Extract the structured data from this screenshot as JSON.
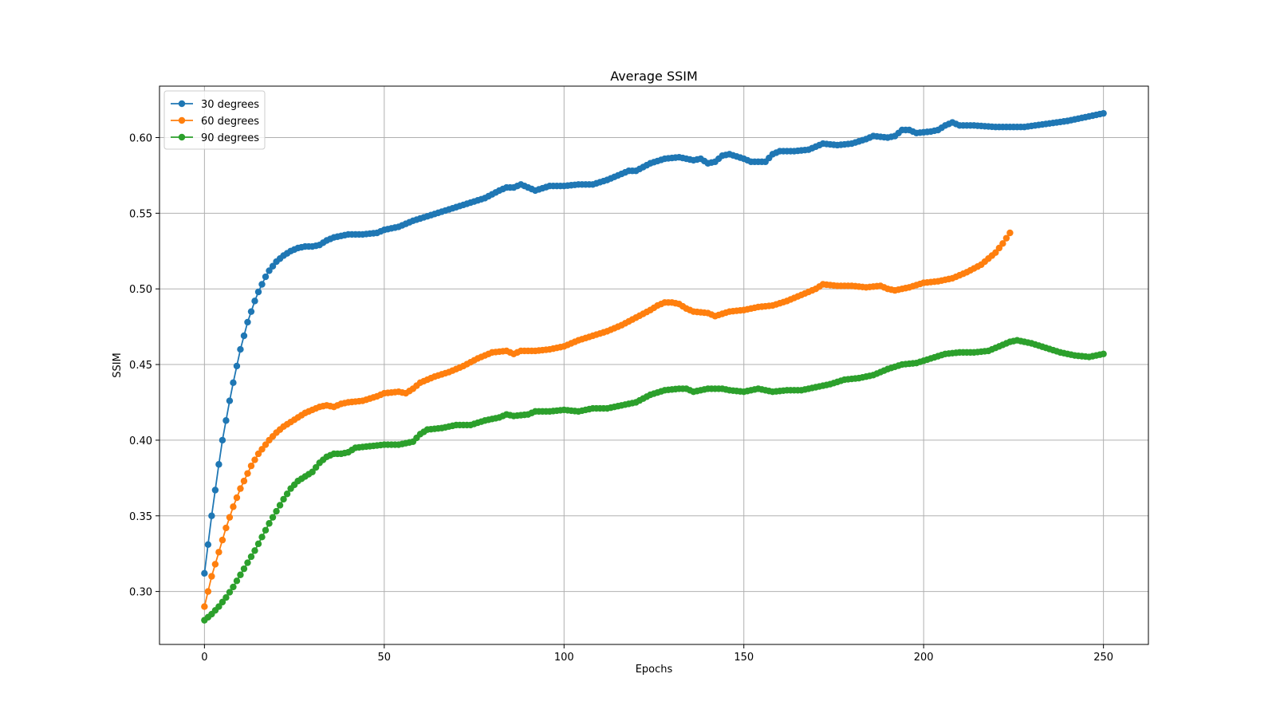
{
  "chart_data": {
    "type": "line",
    "title": "Average SSIM",
    "xlabel": "Epochs",
    "ylabel": "SSIM",
    "xlim": [
      -12.5,
      262.5
    ],
    "ylim": [
      0.265,
      0.634
    ],
    "xticks": [
      0,
      50,
      100,
      150,
      200,
      250
    ],
    "xtick_labels": [
      "0",
      "50",
      "100",
      "150",
      "200",
      "250"
    ],
    "yticks": [
      0.3,
      0.35,
      0.4,
      0.45,
      0.5,
      0.55,
      0.6
    ],
    "ytick_labels": [
      "0.30",
      "0.35",
      "0.40",
      "0.45",
      "0.50",
      "0.55",
      "0.60"
    ],
    "grid": true,
    "legend_position": "top-left",
    "colors": {
      "30 degrees": "#1f77b4",
      "60 degrees": "#ff7f0e",
      "90 degrees": "#2ca02c",
      "grid": "#b0b0b0",
      "axes": "#000000"
    },
    "series": [
      {
        "name": "30 degrees",
        "color": "#1f77b4",
        "keypoints": [
          [
            0,
            0.312
          ],
          [
            1,
            0.331
          ],
          [
            2,
            0.35
          ],
          [
            3,
            0.367
          ],
          [
            4,
            0.384
          ],
          [
            5,
            0.4
          ],
          [
            6,
            0.413
          ],
          [
            7,
            0.426
          ],
          [
            8,
            0.438
          ],
          [
            9,
            0.449
          ],
          [
            10,
            0.46
          ],
          [
            11,
            0.469
          ],
          [
            12,
            0.478
          ],
          [
            13,
            0.485
          ],
          [
            14,
            0.492
          ],
          [
            15,
            0.498
          ],
          [
            16,
            0.503
          ],
          [
            17,
            0.508
          ],
          [
            18,
            0.512
          ],
          [
            19,
            0.515
          ],
          [
            20,
            0.518
          ],
          [
            22,
            0.522
          ],
          [
            24,
            0.525
          ],
          [
            26,
            0.527
          ],
          [
            28,
            0.528
          ],
          [
            30,
            0.528
          ],
          [
            32,
            0.529
          ],
          [
            34,
            0.532
          ],
          [
            36,
            0.534
          ],
          [
            38,
            0.535
          ],
          [
            40,
            0.536
          ],
          [
            44,
            0.536
          ],
          [
            48,
            0.537
          ],
          [
            50,
            0.539
          ],
          [
            54,
            0.541
          ],
          [
            58,
            0.545
          ],
          [
            62,
            0.548
          ],
          [
            66,
            0.551
          ],
          [
            70,
            0.554
          ],
          [
            74,
            0.557
          ],
          [
            78,
            0.56
          ],
          [
            82,
            0.565
          ],
          [
            84,
            0.567
          ],
          [
            86,
            0.567
          ],
          [
            88,
            0.569
          ],
          [
            90,
            0.567
          ],
          [
            92,
            0.565
          ],
          [
            96,
            0.568
          ],
          [
            100,
            0.568
          ],
          [
            104,
            0.569
          ],
          [
            108,
            0.569
          ],
          [
            112,
            0.572
          ],
          [
            116,
            0.576
          ],
          [
            118,
            0.578
          ],
          [
            120,
            0.578
          ],
          [
            124,
            0.583
          ],
          [
            128,
            0.586
          ],
          [
            132,
            0.587
          ],
          [
            136,
            0.585
          ],
          [
            138,
            0.586
          ],
          [
            140,
            0.583
          ],
          [
            142,
            0.584
          ],
          [
            144,
            0.588
          ],
          [
            146,
            0.589
          ],
          [
            150,
            0.586
          ],
          [
            152,
            0.584
          ],
          [
            156,
            0.584
          ],
          [
            158,
            0.589
          ],
          [
            160,
            0.591
          ],
          [
            164,
            0.591
          ],
          [
            168,
            0.592
          ],
          [
            172,
            0.596
          ],
          [
            176,
            0.595
          ],
          [
            180,
            0.596
          ],
          [
            184,
            0.599
          ],
          [
            186,
            0.601
          ],
          [
            190,
            0.6
          ],
          [
            192,
            0.601
          ],
          [
            194,
            0.605
          ],
          [
            196,
            0.605
          ],
          [
            198,
            0.603
          ],
          [
            202,
            0.604
          ],
          [
            204,
            0.605
          ],
          [
            206,
            0.608
          ],
          [
            208,
            0.61
          ],
          [
            210,
            0.608
          ],
          [
            214,
            0.608
          ],
          [
            220,
            0.607
          ],
          [
            224,
            0.607
          ],
          [
            228,
            0.607
          ],
          [
            234,
            0.609
          ],
          [
            240,
            0.611
          ],
          [
            246,
            0.614
          ],
          [
            250,
            0.616
          ]
        ]
      },
      {
        "name": "60 degrees",
        "color": "#ff7f0e",
        "keypoints": [
          [
            0,
            0.29
          ],
          [
            1,
            0.3
          ],
          [
            2,
            0.31
          ],
          [
            3,
            0.318
          ],
          [
            4,
            0.326
          ],
          [
            5,
            0.334
          ],
          [
            6,
            0.342
          ],
          [
            7,
            0.349
          ],
          [
            8,
            0.356
          ],
          [
            9,
            0.362
          ],
          [
            10,
            0.368
          ],
          [
            11,
            0.373
          ],
          [
            12,
            0.378
          ],
          [
            13,
            0.383
          ],
          [
            14,
            0.387
          ],
          [
            15,
            0.391
          ],
          [
            16,
            0.394
          ],
          [
            17,
            0.397
          ],
          [
            18,
            0.4
          ],
          [
            20,
            0.405
          ],
          [
            22,
            0.409
          ],
          [
            24,
            0.412
          ],
          [
            26,
            0.415
          ],
          [
            28,
            0.418
          ],
          [
            30,
            0.42
          ],
          [
            32,
            0.422
          ],
          [
            34,
            0.423
          ],
          [
            36,
            0.422
          ],
          [
            38,
            0.424
          ],
          [
            40,
            0.425
          ],
          [
            44,
            0.426
          ],
          [
            48,
            0.429
          ],
          [
            50,
            0.431
          ],
          [
            54,
            0.432
          ],
          [
            56,
            0.431
          ],
          [
            58,
            0.434
          ],
          [
            60,
            0.438
          ],
          [
            64,
            0.442
          ],
          [
            68,
            0.445
          ],
          [
            72,
            0.449
          ],
          [
            76,
            0.454
          ],
          [
            80,
            0.458
          ],
          [
            84,
            0.459
          ],
          [
            86,
            0.457
          ],
          [
            88,
            0.459
          ],
          [
            92,
            0.459
          ],
          [
            96,
            0.46
          ],
          [
            100,
            0.462
          ],
          [
            104,
            0.466
          ],
          [
            108,
            0.469
          ],
          [
            112,
            0.472
          ],
          [
            116,
            0.476
          ],
          [
            120,
            0.481
          ],
          [
            124,
            0.486
          ],
          [
            126,
            0.489
          ],
          [
            128,
            0.491
          ],
          [
            130,
            0.491
          ],
          [
            132,
            0.49
          ],
          [
            134,
            0.487
          ],
          [
            136,
            0.485
          ],
          [
            140,
            0.484
          ],
          [
            142,
            0.482
          ],
          [
            146,
            0.485
          ],
          [
            150,
            0.486
          ],
          [
            154,
            0.488
          ],
          [
            158,
            0.489
          ],
          [
            162,
            0.492
          ],
          [
            166,
            0.496
          ],
          [
            170,
            0.5
          ],
          [
            172,
            0.503
          ],
          [
            176,
            0.502
          ],
          [
            180,
            0.502
          ],
          [
            184,
            0.501
          ],
          [
            188,
            0.502
          ],
          [
            190,
            0.5
          ],
          [
            192,
            0.499
          ],
          [
            196,
            0.501
          ],
          [
            200,
            0.504
          ],
          [
            204,
            0.505
          ],
          [
            208,
            0.507
          ],
          [
            212,
            0.511
          ],
          [
            216,
            0.516
          ],
          [
            220,
            0.524
          ],
          [
            222,
            0.53
          ],
          [
            224,
            0.537
          ]
        ]
      },
      {
        "name": "90 degrees",
        "color": "#2ca02c",
        "keypoints": [
          [
            0,
            0.281
          ],
          [
            2,
            0.285
          ],
          [
            4,
            0.29
          ],
          [
            6,
            0.296
          ],
          [
            8,
            0.303
          ],
          [
            10,
            0.311
          ],
          [
            12,
            0.319
          ],
          [
            14,
            0.327
          ],
          [
            16,
            0.336
          ],
          [
            18,
            0.345
          ],
          [
            20,
            0.353
          ],
          [
            22,
            0.361
          ],
          [
            24,
            0.368
          ],
          [
            26,
            0.373
          ],
          [
            28,
            0.376
          ],
          [
            30,
            0.379
          ],
          [
            32,
            0.385
          ],
          [
            34,
            0.389
          ],
          [
            36,
            0.391
          ],
          [
            38,
            0.391
          ],
          [
            40,
            0.392
          ],
          [
            42,
            0.395
          ],
          [
            46,
            0.396
          ],
          [
            50,
            0.397
          ],
          [
            54,
            0.397
          ],
          [
            58,
            0.399
          ],
          [
            60,
            0.404
          ],
          [
            62,
            0.407
          ],
          [
            66,
            0.408
          ],
          [
            70,
            0.41
          ],
          [
            74,
            0.41
          ],
          [
            78,
            0.413
          ],
          [
            82,
            0.415
          ],
          [
            84,
            0.417
          ],
          [
            86,
            0.416
          ],
          [
            90,
            0.417
          ],
          [
            92,
            0.419
          ],
          [
            96,
            0.419
          ],
          [
            100,
            0.42
          ],
          [
            104,
            0.419
          ],
          [
            108,
            0.421
          ],
          [
            112,
            0.421
          ],
          [
            116,
            0.423
          ],
          [
            120,
            0.425
          ],
          [
            124,
            0.43
          ],
          [
            128,
            0.433
          ],
          [
            132,
            0.434
          ],
          [
            134,
            0.434
          ],
          [
            136,
            0.432
          ],
          [
            140,
            0.434
          ],
          [
            144,
            0.434
          ],
          [
            146,
            0.433
          ],
          [
            150,
            0.432
          ],
          [
            154,
            0.434
          ],
          [
            158,
            0.432
          ],
          [
            162,
            0.433
          ],
          [
            166,
            0.433
          ],
          [
            170,
            0.435
          ],
          [
            174,
            0.437
          ],
          [
            178,
            0.44
          ],
          [
            182,
            0.441
          ],
          [
            186,
            0.443
          ],
          [
            190,
            0.447
          ],
          [
            194,
            0.45
          ],
          [
            198,
            0.451
          ],
          [
            202,
            0.454
          ],
          [
            206,
            0.457
          ],
          [
            210,
            0.458
          ],
          [
            214,
            0.458
          ],
          [
            218,
            0.459
          ],
          [
            220,
            0.461
          ],
          [
            222,
            0.463
          ],
          [
            224,
            0.465
          ],
          [
            226,
            0.466
          ],
          [
            230,
            0.464
          ],
          [
            234,
            0.461
          ],
          [
            238,
            0.458
          ],
          [
            242,
            0.456
          ],
          [
            246,
            0.455
          ],
          [
            250,
            0.457
          ]
        ]
      }
    ]
  }
}
